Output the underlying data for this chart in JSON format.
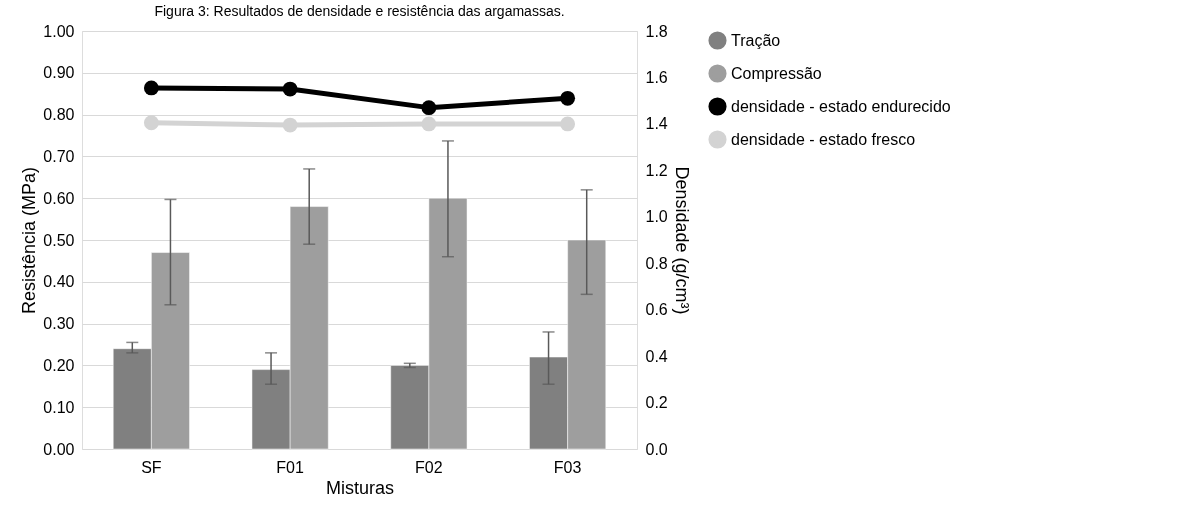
{
  "chart_data": {
    "type": "bar",
    "title": "Figura 3: Resultados de densidade e resistência das argamassas.",
    "xlabel": "Misturas",
    "ylabel": "Resistência (MPa)",
    "y2label": "Densidade (g/cm³)",
    "categories": [
      "SF",
      "F01",
      "F02",
      "F03"
    ],
    "series": [
      {
        "name": "Tração",
        "color": "#808080",
        "values": [
          0.24,
          0.19,
          0.2,
          0.22
        ],
        "errors": [
          [
            0.23,
            0.255
          ],
          [
            0.155,
            0.23
          ],
          [
            0.195,
            0.205
          ],
          [
            0.155,
            0.28
          ]
        ]
      },
      {
        "name": "Compressão",
        "color": "#9e9e9e",
        "values": [
          0.47,
          0.58,
          0.6,
          0.5
        ],
        "errors": [
          [
            0.345,
            0.597
          ],
          [
            0.49,
            0.67
          ],
          [
            0.46,
            0.737
          ],
          [
            0.37,
            0.62
          ]
        ]
      },
      {
        "name": "densidade - estado endurecido",
        "type": "line",
        "axis": "y2",
        "color": "#000000",
        "values": [
          1.555,
          1.55,
          1.47,
          1.51
        ]
      },
      {
        "name": "densidade - estado fresco",
        "type": "line",
        "axis": "y2",
        "color": "#d3d3d3",
        "values": [
          1.405,
          1.395,
          1.4,
          1.4
        ]
      }
    ],
    "ylim": [
      0,
      1.0
    ],
    "yticks": [
      {
        "value": 0,
        "label": "0.00"
      },
      {
        "value": 0.1,
        "label": "0.10"
      },
      {
        "value": 0.2,
        "label": "0.20"
      },
      {
        "value": 0.3,
        "label": "0.30"
      },
      {
        "value": 0.4,
        "label": "0.40"
      },
      {
        "value": 0.5,
        "label": "0.50"
      },
      {
        "value": 0.6,
        "label": "0.60"
      },
      {
        "value": 0.7,
        "label": "0.70"
      },
      {
        "value": 0.8,
        "label": "0.80"
      },
      {
        "value": 0.9,
        "label": "0.90"
      },
      {
        "value": 1.0,
        "label": "1.00"
      }
    ],
    "y2lim": [
      0,
      1.8
    ],
    "y2ticks": [
      {
        "value": 0,
        "label": "0.0"
      },
      {
        "value": 0.2,
        "label": "0.2"
      },
      {
        "value": 0.4,
        "label": "0.4"
      },
      {
        "value": 0.6,
        "label": "0.6"
      },
      {
        "value": 0.8,
        "label": "0.8"
      },
      {
        "value": 1.0,
        "label": "1.0"
      },
      {
        "value": 1.2,
        "label": "1.2"
      },
      {
        "value": 1.4,
        "label": "1.4"
      },
      {
        "value": 1.6,
        "label": "1.6"
      },
      {
        "value": 1.8,
        "label": "1.8"
      }
    ],
    "grid": "y",
    "legend": "right",
    "marker": "circle"
  }
}
